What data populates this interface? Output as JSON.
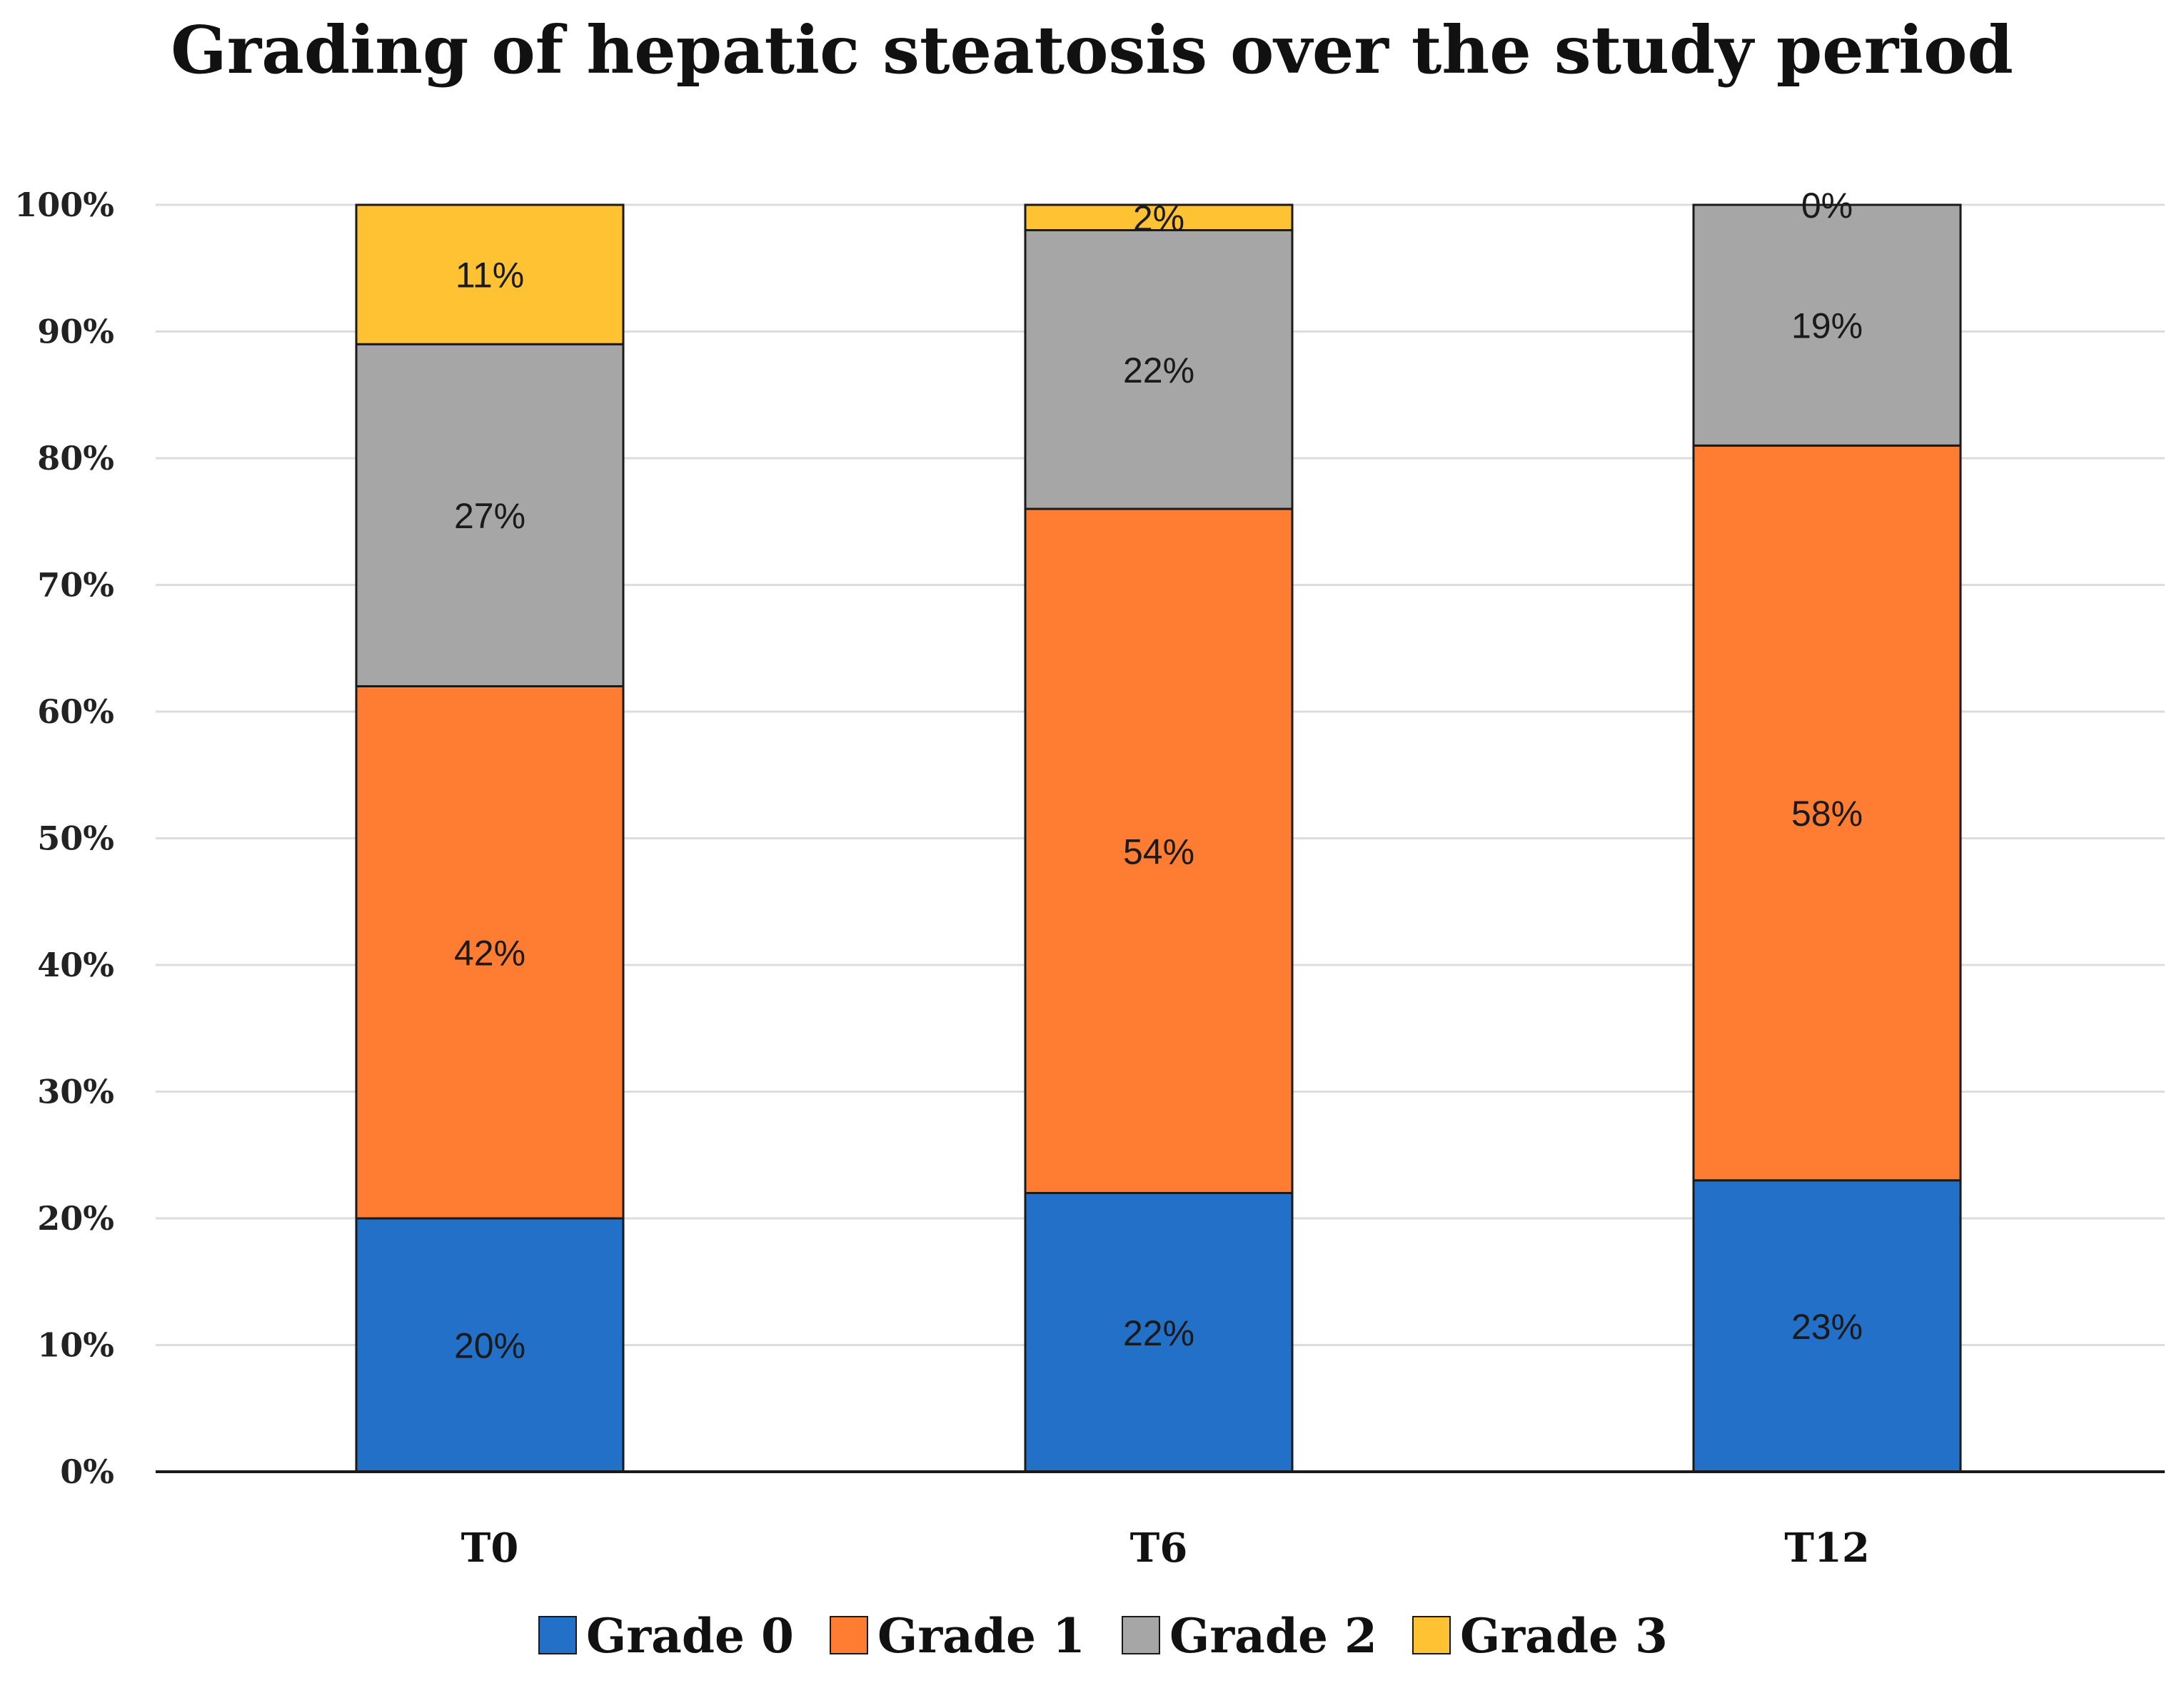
{
  "chart_data": {
    "type": "bar",
    "stacked": true,
    "title": "Grading of hepatic steatosis over the study period",
    "categories": [
      "T0",
      "T6",
      "T12"
    ],
    "series": [
      {
        "name": "Grade 0",
        "values": [
          20,
          22,
          23
        ],
        "labels": [
          "20%",
          "22%",
          "23%"
        ],
        "color": "#2270C8"
      },
      {
        "name": "Grade 1",
        "values": [
          42,
          54,
          58
        ],
        "labels": [
          "42%",
          "54%",
          "58%"
        ],
        "color": "#FF7D32"
      },
      {
        "name": "Grade 2",
        "values": [
          27,
          22,
          19
        ],
        "labels": [
          "27%",
          "22%",
          "19%"
        ],
        "color": "#A6A6A6"
      },
      {
        "name": "Grade 3",
        "values": [
          11,
          2,
          0
        ],
        "labels": [
          "11%",
          "2%",
          "0%"
        ],
        "color": "#FFC233"
      }
    ],
    "y_ticks": [
      "0%",
      "10%",
      "20%",
      "30%",
      "40%",
      "50%",
      "60%",
      "70%",
      "80%",
      "90%",
      "100%"
    ],
    "ylim": [
      0,
      100
    ],
    "grid": true,
    "legend_position": "bottom"
  }
}
